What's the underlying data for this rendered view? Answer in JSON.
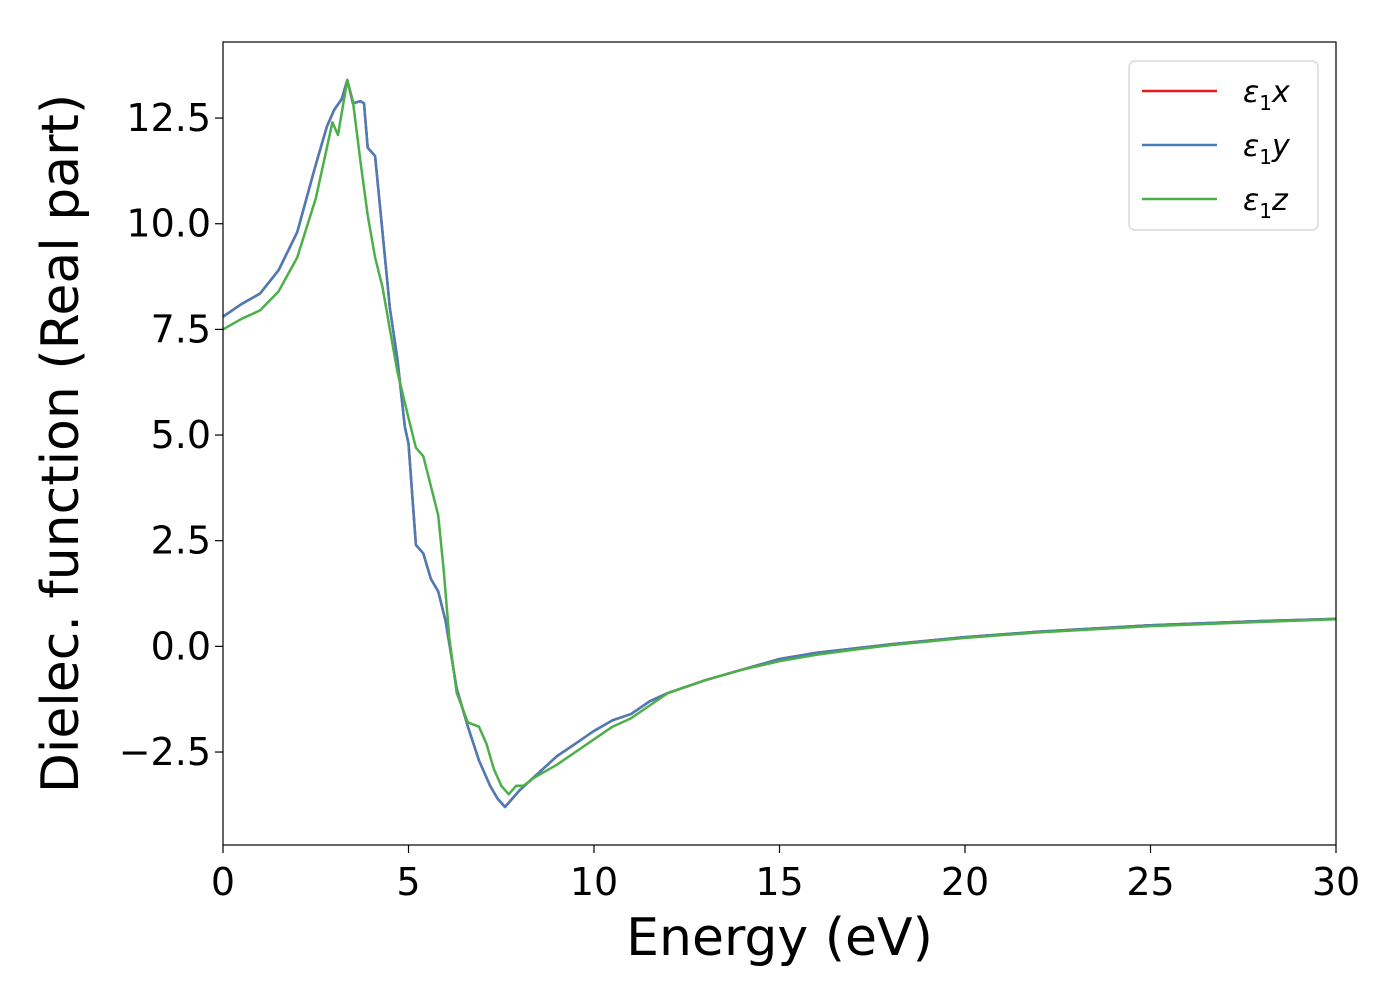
{
  "chart_data": {
    "type": "line",
    "xlabel": "Energy (eV)",
    "ylabel": "Dielec. function (Real part)",
    "xlim": [
      0,
      30
    ],
    "ylim": [
      -4.7,
      14.3
    ],
    "xticks": [
      0,
      5,
      10,
      15,
      20,
      25,
      30
    ],
    "xtick_labels": [
      "0",
      "5",
      "10",
      "15",
      "20",
      "25",
      "30"
    ],
    "yticks": [
      -2.5,
      0.0,
      2.5,
      5.0,
      7.5,
      10.0,
      12.5
    ],
    "ytick_labels": [
      "−2.5",
      "0.0",
      "2.5",
      "5.0",
      "7.5",
      "10.0",
      "12.5"
    ],
    "grid": false,
    "legend_position": "top-right",
    "series": [
      {
        "name": "ε1x",
        "legend_symbol": "ε",
        "legend_sub": "1",
        "legend_var": "x",
        "color": "#e41a1c",
        "x": [
          0,
          0.5,
          1,
          1.5,
          2,
          2.5,
          2.8,
          3.0,
          3.2,
          3.35,
          3.5,
          3.7,
          3.8,
          3.9,
          4.1,
          4.3,
          4.5,
          4.7,
          4.9,
          5.0,
          5.2,
          5.4,
          5.6,
          5.8,
          6.0,
          6.3,
          6.6,
          6.9,
          7.2,
          7.4,
          7.6,
          7.8,
          8.0,
          8.5,
          9.0,
          9.5,
          10.0,
          10.5,
          11.0,
          11.5,
          12.0,
          13.0,
          14.0,
          15.0,
          16.0,
          17.0,
          18.0,
          20.0,
          22.0,
          25.0,
          28.0,
          30.0
        ],
        "y": [
          7.8,
          8.1,
          8.35,
          8.9,
          9.8,
          11.4,
          12.3,
          12.7,
          12.95,
          13.4,
          12.85,
          12.9,
          12.85,
          11.8,
          11.6,
          9.8,
          8.0,
          6.8,
          5.2,
          4.8,
          2.4,
          2.2,
          1.6,
          1.3,
          0.6,
          -1.0,
          -1.9,
          -2.7,
          -3.3,
          -3.6,
          -3.8,
          -3.6,
          -3.4,
          -3.0,
          -2.6,
          -2.3,
          -2.0,
          -1.75,
          -1.6,
          -1.3,
          -1.1,
          -0.8,
          -0.55,
          -0.3,
          -0.15,
          -0.05,
          0.05,
          0.22,
          0.35,
          0.5,
          0.6,
          0.65
        ]
      },
      {
        "name": "ε1y",
        "legend_symbol": "ε",
        "legend_sub": "1",
        "legend_var": "y",
        "color": "#4a7db8",
        "x": [
          0,
          0.5,
          1,
          1.5,
          2,
          2.5,
          2.8,
          3.0,
          3.2,
          3.35,
          3.5,
          3.7,
          3.8,
          3.9,
          4.1,
          4.3,
          4.5,
          4.7,
          4.9,
          5.0,
          5.2,
          5.4,
          5.6,
          5.8,
          6.0,
          6.3,
          6.6,
          6.9,
          7.2,
          7.4,
          7.6,
          7.8,
          8.0,
          8.5,
          9.0,
          9.5,
          10.0,
          10.5,
          11.0,
          11.5,
          12.0,
          13.0,
          14.0,
          15.0,
          16.0,
          17.0,
          18.0,
          20.0,
          22.0,
          25.0,
          28.0,
          30.0
        ],
        "y": [
          7.8,
          8.1,
          8.35,
          8.9,
          9.8,
          11.4,
          12.3,
          12.7,
          12.95,
          13.4,
          12.85,
          12.9,
          12.85,
          11.8,
          11.6,
          9.8,
          8.0,
          6.8,
          5.2,
          4.8,
          2.4,
          2.2,
          1.6,
          1.3,
          0.6,
          -1.0,
          -1.9,
          -2.7,
          -3.3,
          -3.6,
          -3.8,
          -3.6,
          -3.4,
          -3.0,
          -2.6,
          -2.3,
          -2.0,
          -1.75,
          -1.6,
          -1.3,
          -1.1,
          -0.8,
          -0.55,
          -0.3,
          -0.15,
          -0.05,
          0.05,
          0.22,
          0.35,
          0.5,
          0.6,
          0.65
        ]
      },
      {
        "name": "ε1z",
        "legend_symbol": "ε",
        "legend_sub": "1",
        "legend_var": "z",
        "color": "#4daf4a",
        "x": [
          0,
          0.5,
          1,
          1.5,
          2,
          2.5,
          2.8,
          2.95,
          3.1,
          3.35,
          3.5,
          3.7,
          3.9,
          4.1,
          4.3,
          4.5,
          4.7,
          5.0,
          5.2,
          5.4,
          5.6,
          5.8,
          5.95,
          6.1,
          6.3,
          6.6,
          6.9,
          7.1,
          7.3,
          7.5,
          7.7,
          7.9,
          8.1,
          8.4,
          9.0,
          9.5,
          10.0,
          10.5,
          11.0,
          11.5,
          12.0,
          13.0,
          14.0,
          15.0,
          16.0,
          17.0,
          18.0,
          20.0,
          22.0,
          25.0,
          28.0,
          30.0
        ],
        "y": [
          7.5,
          7.75,
          7.95,
          8.4,
          9.2,
          10.6,
          11.8,
          12.4,
          12.1,
          13.4,
          12.9,
          11.5,
          10.2,
          9.2,
          8.5,
          7.5,
          6.5,
          5.4,
          4.7,
          4.5,
          3.8,
          3.1,
          1.8,
          0.2,
          -1.1,
          -1.8,
          -1.9,
          -2.3,
          -2.9,
          -3.3,
          -3.5,
          -3.3,
          -3.3,
          -3.1,
          -2.8,
          -2.5,
          -2.2,
          -1.9,
          -1.7,
          -1.4,
          -1.1,
          -0.8,
          -0.55,
          -0.35,
          -0.2,
          -0.08,
          0.03,
          0.2,
          0.33,
          0.48,
          0.58,
          0.64
        ]
      }
    ]
  }
}
